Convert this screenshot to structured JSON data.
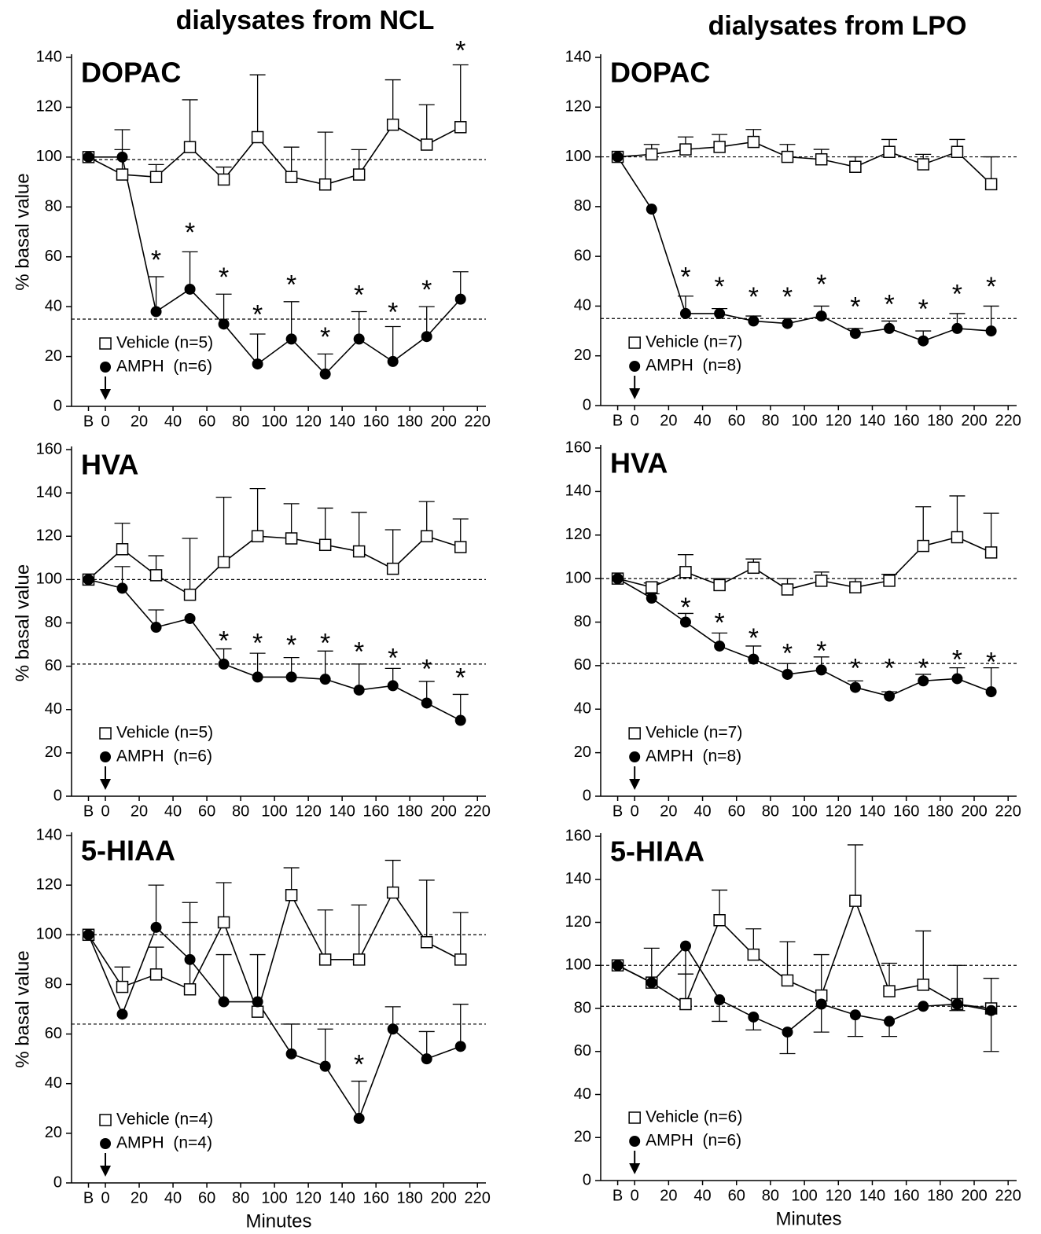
{
  "column_titles": [
    "dialysates from NCL",
    "dialysates from LPO"
  ],
  "chart_data": [
    {
      "type": "line",
      "title": "DOPAC",
      "ylabel": "% basal value",
      "x": [
        -10,
        10,
        30,
        50,
        70,
        90,
        110,
        130,
        150,
        170,
        190,
        210
      ],
      "xlim": [
        -20,
        225
      ],
      "xticks": [
        {
          "value": -10,
          "label": "B"
        },
        0,
        20,
        40,
        60,
        80,
        100,
        120,
        140,
        160,
        180,
        200,
        220
      ],
      "ylim": [
        0,
        140
      ],
      "yticks": [
        0,
        20,
        40,
        60,
        80,
        100,
        120,
        140
      ],
      "series": [
        {
          "name": "Vehicle (n=5)",
          "marker": "square",
          "color": "#000000",
          "values": [
            100,
            93,
            92,
            104,
            91,
            108,
            92,
            89,
            93,
            113,
            105,
            112
          ],
          "errors": [
            0,
            18,
            5,
            19,
            5,
            25,
            12,
            21,
            10,
            18,
            16,
            25
          ]
        },
        {
          "name": "AMPH  (n=6)",
          "marker": "circle",
          "color": "#000000",
          "values": [
            100,
            100,
            38,
            47,
            33,
            17,
            27,
            13,
            27,
            18,
            28,
            43
          ],
          "errors": [
            0,
            3,
            14,
            15,
            12,
            12,
            15,
            8,
            11,
            14,
            12,
            11
          ]
        }
      ],
      "reference_lines": [
        99,
        35
      ],
      "annotations": [
        {
          "text": "*",
          "x": 30,
          "y": 59
        },
        {
          "text": "*",
          "x": 50,
          "y": 70
        },
        {
          "text": "*",
          "x": 70,
          "y": 52
        },
        {
          "text": "*",
          "x": 90,
          "y": 37
        },
        {
          "text": "*",
          "x": 110,
          "y": 49
        },
        {
          "text": "*",
          "x": 130,
          "y": 28
        },
        {
          "text": "*",
          "x": 150,
          "y": 45
        },
        {
          "text": "*",
          "x": 170,
          "y": 38
        },
        {
          "text": "*",
          "x": 190,
          "y": 47
        },
        {
          "text": "*",
          "x": 210,
          "y": 143
        }
      ],
      "arrow_x": 0,
      "legend": "lower left"
    },
    {
      "type": "line",
      "title": "DOPAC",
      "x": [
        -10,
        10,
        30,
        50,
        70,
        90,
        110,
        130,
        150,
        170,
        190,
        210
      ],
      "xlim": [
        -20,
        225
      ],
      "xticks": [
        {
          "value": -10,
          "label": "B"
        },
        0,
        20,
        40,
        60,
        80,
        100,
        120,
        140,
        160,
        180,
        200,
        220
      ],
      "ylim": [
        0,
        140
      ],
      "yticks": [
        0,
        20,
        40,
        60,
        80,
        100,
        120,
        140
      ],
      "series": [
        {
          "name": "Vehicle (n=7)",
          "marker": "square",
          "color": "#000000",
          "values": [
            100,
            101,
            103,
            104,
            106,
            100,
            99,
            96,
            102,
            97,
            102,
            89
          ],
          "errors": [
            0,
            4,
            5,
            5,
            5,
            5,
            4,
            4,
            5,
            4,
            5,
            11
          ]
        },
        {
          "name": "AMPH  (n=8)",
          "marker": "circle",
          "color": "#000000",
          "values": [
            100,
            79,
            37,
            37,
            34,
            33,
            36,
            29,
            31,
            26,
            31,
            30
          ],
          "errors": [
            0,
            0,
            7,
            2,
            2,
            2,
            4,
            2,
            3,
            4,
            6,
            10
          ]
        }
      ],
      "reference_lines": [
        100,
        35
      ],
      "annotations": [
        {
          "text": "*",
          "x": 30,
          "y": 52
        },
        {
          "text": "*",
          "x": 50,
          "y": 48
        },
        {
          "text": "*",
          "x": 70,
          "y": 44
        },
        {
          "text": "*",
          "x": 90,
          "y": 44
        },
        {
          "text": "*",
          "x": 110,
          "y": 49
        },
        {
          "text": "*",
          "x": 130,
          "y": 40
        },
        {
          "text": "*",
          "x": 150,
          "y": 41
        },
        {
          "text": "*",
          "x": 170,
          "y": 39
        },
        {
          "text": "*",
          "x": 190,
          "y": 45
        },
        {
          "text": "*",
          "x": 210,
          "y": 48
        }
      ],
      "arrow_x": 0,
      "legend": "lower left"
    },
    {
      "type": "line",
      "title": "HVA",
      "ylabel": "% basal value",
      "x": [
        -10,
        10,
        30,
        50,
        70,
        90,
        110,
        130,
        150,
        170,
        190,
        210
      ],
      "xlim": [
        -20,
        225
      ],
      "xticks": [
        {
          "value": -10,
          "label": "B"
        },
        0,
        20,
        40,
        60,
        80,
        100,
        120,
        140,
        160,
        180,
        200,
        220
      ],
      "ylim": [
        0,
        160
      ],
      "yticks": [
        0,
        20,
        40,
        60,
        80,
        100,
        120,
        140,
        160
      ],
      "series": [
        {
          "name": "Vehicle (n=5)",
          "marker": "square",
          "color": "#000000",
          "values": [
            100,
            114,
            102,
            93,
            108,
            120,
            119,
            116,
            113,
            105,
            120,
            115
          ],
          "errors": [
            0,
            12,
            9,
            26,
            30,
            22,
            16,
            17,
            18,
            18,
            16,
            13
          ]
        },
        {
          "name": "AMPH  (n=6)",
          "marker": "circle",
          "color": "#000000",
          "values": [
            100,
            96,
            78,
            82,
            61,
            55,
            55,
            54,
            49,
            51,
            43,
            35
          ],
          "errors": [
            0,
            10,
            8,
            0,
            7,
            11,
            9,
            13,
            12,
            8,
            10,
            12
          ]
        }
      ],
      "reference_lines": [
        100,
        61
      ],
      "annotations": [
        {
          "text": "*",
          "x": 70,
          "y": 72
        },
        {
          "text": "*",
          "x": 90,
          "y": 71
        },
        {
          "text": "*",
          "x": 110,
          "y": 70
        },
        {
          "text": "*",
          "x": 130,
          "y": 71
        },
        {
          "text": "*",
          "x": 150,
          "y": 67
        },
        {
          "text": "*",
          "x": 170,
          "y": 64
        },
        {
          "text": "*",
          "x": 190,
          "y": 59
        },
        {
          "text": "*",
          "x": 210,
          "y": 55
        }
      ],
      "arrow_x": 0,
      "legend": "lower left"
    },
    {
      "type": "line",
      "title": "HVA",
      "x": [
        -10,
        10,
        30,
        50,
        70,
        90,
        110,
        130,
        150,
        170,
        190,
        210
      ],
      "xlim": [
        -20,
        225
      ],
      "xticks": [
        {
          "value": -10,
          "label": "B"
        },
        0,
        20,
        40,
        60,
        80,
        100,
        120,
        140,
        160,
        180,
        200,
        220
      ],
      "ylim": [
        0,
        160
      ],
      "yticks": [
        0,
        20,
        40,
        60,
        80,
        100,
        120,
        140,
        160
      ],
      "series": [
        {
          "name": "Vehicle (n=7)",
          "marker": "square",
          "color": "#000000",
          "values": [
            100,
            96,
            103,
            97,
            105,
            95,
            99,
            96,
            99,
            115,
            119,
            112
          ],
          "errors": [
            0,
            2,
            8,
            3,
            4,
            5,
            4,
            4,
            3,
            18,
            19,
            18
          ]
        },
        {
          "name": "AMPH  (n=8)",
          "marker": "circle",
          "color": "#000000",
          "values": [
            100,
            91,
            80,
            69,
            63,
            56,
            58,
            50,
            46,
            53,
            54,
            48
          ],
          "errors": [
            0,
            2,
            4,
            6,
            6,
            5,
            6,
            3,
            2,
            3,
            5,
            11
          ]
        }
      ],
      "reference_lines": [
        100,
        61
      ],
      "annotations": [
        {
          "text": "*",
          "x": 30,
          "y": 87
        },
        {
          "text": "*",
          "x": 50,
          "y": 80
        },
        {
          "text": "*",
          "x": 70,
          "y": 73
        },
        {
          "text": "*",
          "x": 90,
          "y": 66
        },
        {
          "text": "*",
          "x": 110,
          "y": 67
        },
        {
          "text": "*",
          "x": 130,
          "y": 59
        },
        {
          "text": "*",
          "x": 150,
          "y": 59
        },
        {
          "text": "*",
          "x": 170,
          "y": 59
        },
        {
          "text": "*",
          "x": 190,
          "y": 63
        },
        {
          "text": "*",
          "x": 210,
          "y": 62
        }
      ],
      "arrow_x": 0,
      "legend": "lower left"
    },
    {
      "type": "line",
      "title": "5-HIAA",
      "ylabel": "% basal value",
      "xlabel": "Minutes",
      "x": [
        -10,
        10,
        30,
        50,
        70,
        90,
        110,
        130,
        150,
        170,
        190,
        210
      ],
      "xlim": [
        -20,
        225
      ],
      "xticks": [
        {
          "value": -10,
          "label": "B"
        },
        0,
        20,
        40,
        60,
        80,
        100,
        120,
        140,
        160,
        180,
        200,
        220
      ],
      "ylim": [
        0,
        140
      ],
      "yticks": [
        0,
        20,
        40,
        60,
        80,
        100,
        120,
        140
      ],
      "series": [
        {
          "name": "Vehicle (n=4)",
          "marker": "square",
          "color": "#000000",
          "values": [
            100,
            79,
            84,
            78,
            105,
            69,
            116,
            90,
            90,
            117,
            97,
            90
          ],
          "errors": [
            0,
            8,
            11,
            35,
            16,
            23,
            11,
            20,
            22,
            13,
            25,
            19
          ]
        },
        {
          "name": "AMPH  (n=4)",
          "marker": "circle",
          "color": "#000000",
          "values": [
            100,
            68,
            103,
            90,
            73,
            73,
            52,
            47,
            26,
            62,
            50,
            55
          ],
          "errors": [
            0,
            0,
            17,
            15,
            19,
            0,
            12,
            15,
            15,
            9,
            11,
            17
          ]
        }
      ],
      "reference_lines": [
        100,
        64
      ],
      "annotations": [
        {
          "text": "*",
          "x": 150,
          "y": 48
        }
      ],
      "arrow_x": 0,
      "legend": "lower left"
    },
    {
      "type": "line",
      "title": "5-HIAA",
      "xlabel": "Minutes",
      "x": [
        -10,
        10,
        30,
        50,
        70,
        90,
        110,
        130,
        150,
        170,
        190,
        210
      ],
      "xlim": [
        -20,
        225
      ],
      "xticks": [
        {
          "value": -10,
          "label": "B"
        },
        0,
        20,
        40,
        60,
        80,
        100,
        120,
        140,
        160,
        180,
        200,
        220
      ],
      "ylim": [
        0,
        160
      ],
      "yticks": [
        0,
        20,
        40,
        60,
        80,
        100,
        120,
        140,
        160
      ],
      "series": [
        {
          "name": "Vehicle (n=6)",
          "marker": "square",
          "color": "#000000",
          "values": [
            100,
            92,
            82,
            121,
            105,
            93,
            86,
            130,
            88,
            91,
            82,
            80
          ],
          "errors": [
            0,
            16,
            14,
            14,
            12,
            18,
            19,
            26,
            13,
            25,
            18,
            14
          ]
        },
        {
          "name": "AMPH  (n=6)",
          "marker": "circle",
          "color": "#000000",
          "values": [
            100,
            92,
            109,
            84,
            76,
            69,
            82,
            77,
            74,
            81,
            82,
            79
          ],
          "errors": [
            0,
            0,
            13,
            10,
            6,
            10,
            13,
            10,
            7,
            0,
            3,
            19
          ],
          "error_direction": "down"
        }
      ],
      "reference_lines": [
        100,
        81
      ],
      "annotations": [],
      "arrow_x": 0,
      "legend": "lower left"
    }
  ]
}
